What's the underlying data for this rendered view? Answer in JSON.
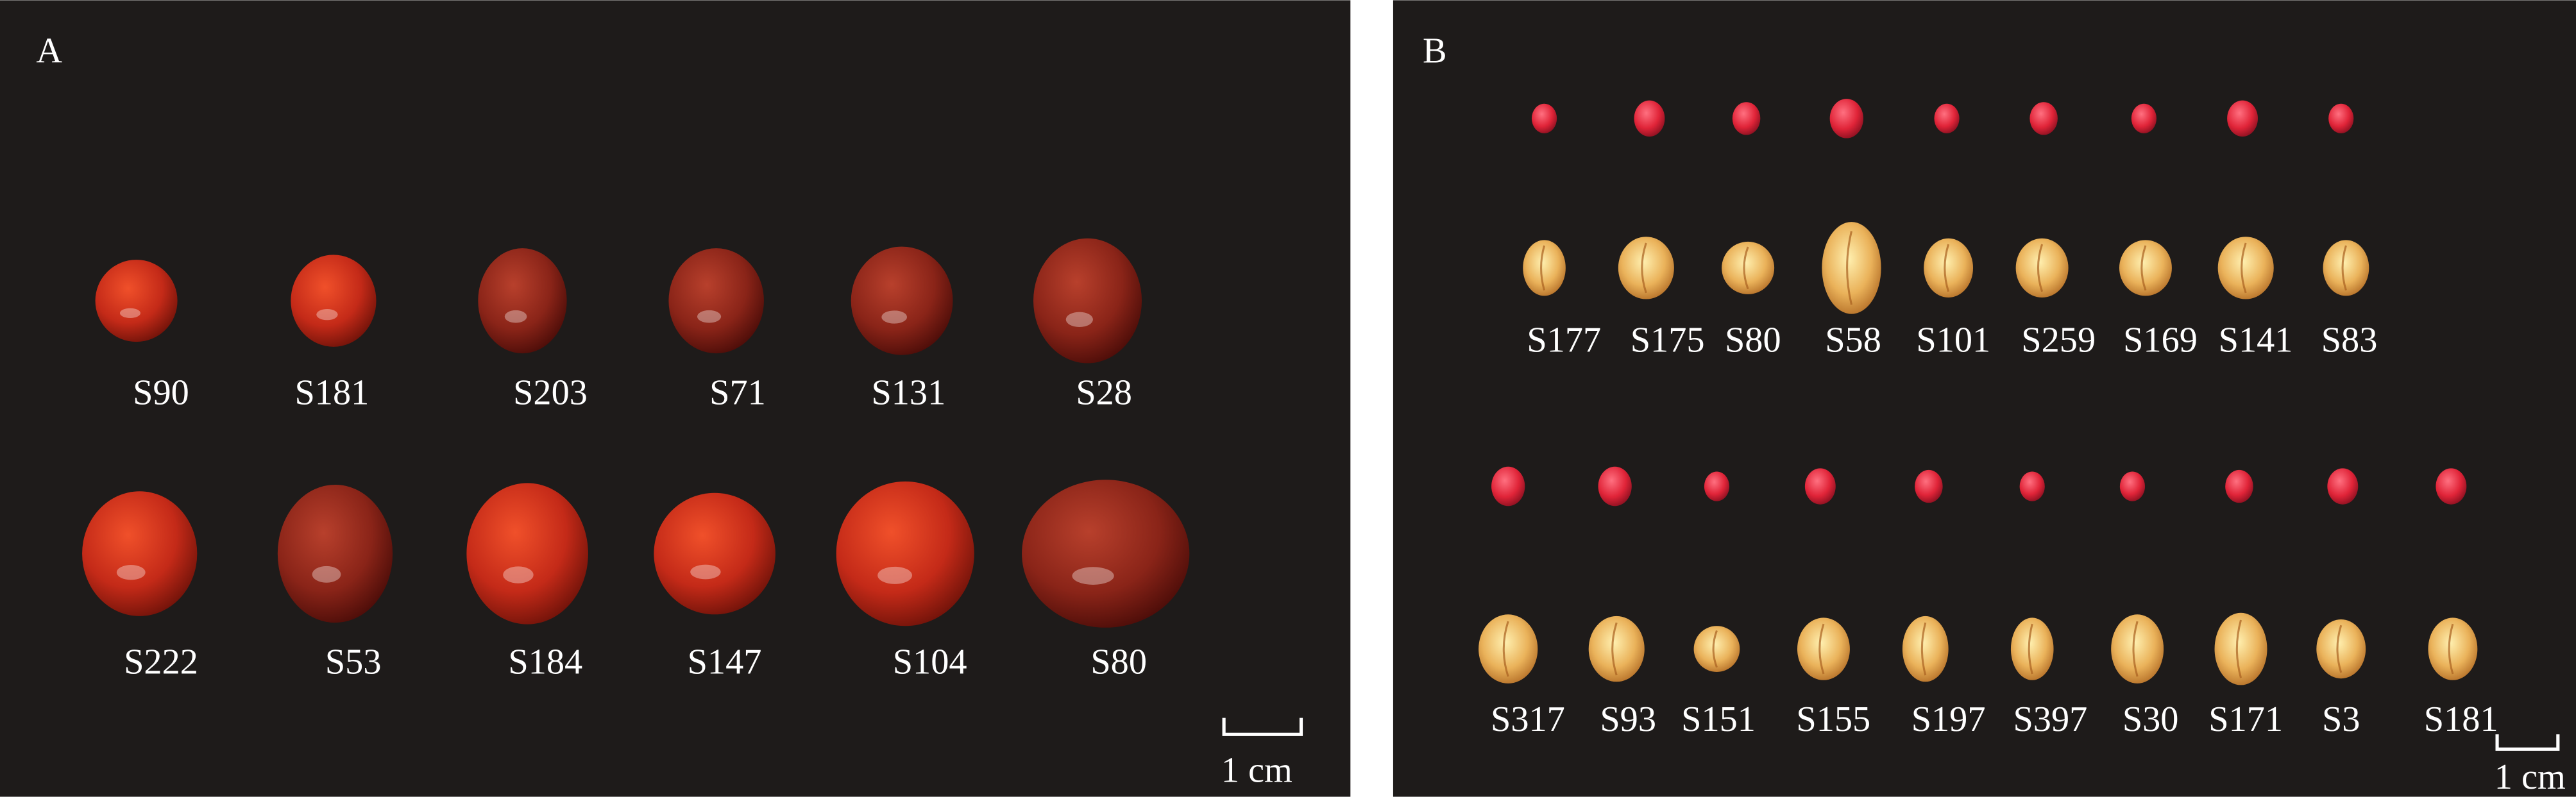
{
  "panels": [
    {
      "label": "A",
      "rows": [
        {
          "labels": [
            "S90",
            "S181",
            "S203",
            "S71",
            "S131",
            "S28"
          ]
        },
        {
          "labels": [
            "S222",
            "S53",
            "S184",
            "S147",
            "S104",
            "S80"
          ]
        }
      ],
      "scale_bar": "1 cm"
    },
    {
      "label": "B",
      "rows": [
        {
          "labels": [
            "S177",
            "S175",
            "S80",
            "S58",
            "S101",
            "S259",
            "S169",
            "S141",
            "S83"
          ]
        },
        {
          "labels": [
            "S317",
            "S93",
            "S151",
            "S155",
            "S197",
            "S397",
            "S30",
            "S171",
            "S3",
            "S181"
          ]
        }
      ],
      "scale_bar": "1 cm"
    }
  ]
}
